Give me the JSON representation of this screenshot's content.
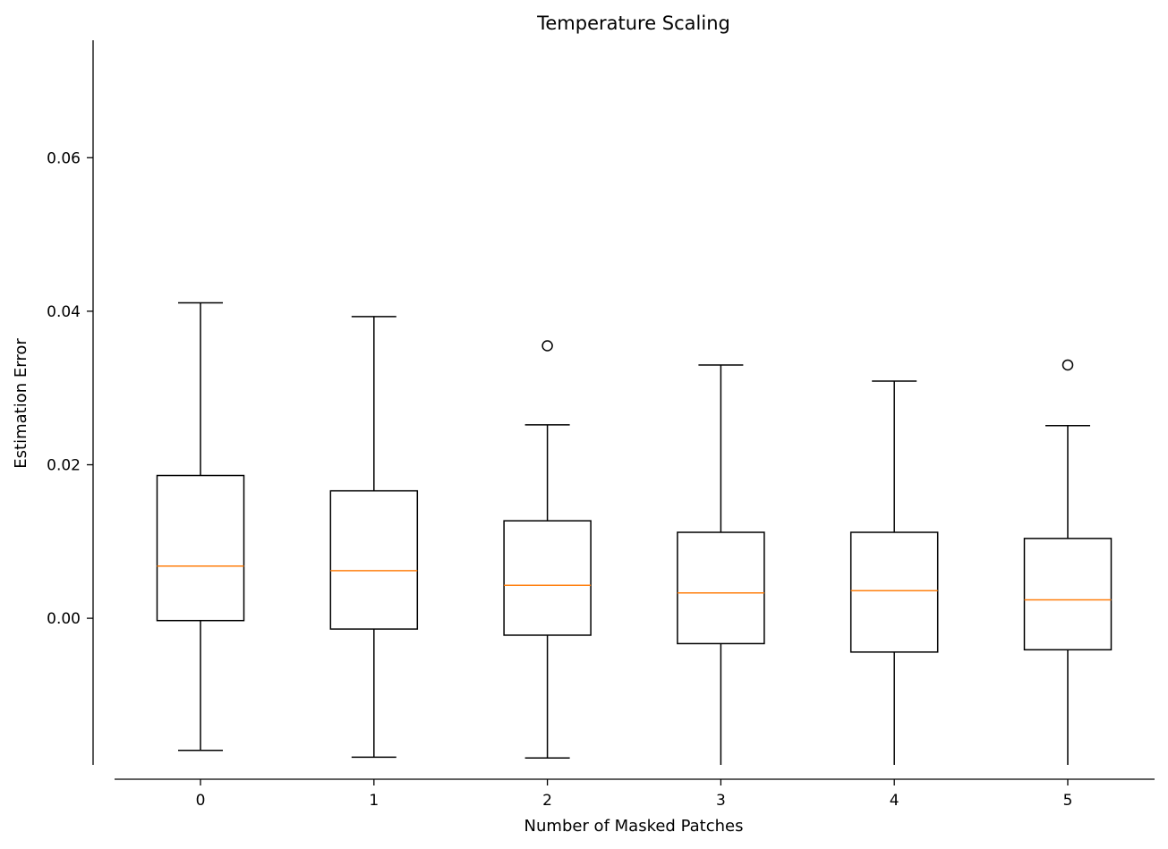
{
  "chart_data": {
    "type": "box",
    "title": "Temperature Scaling",
    "xlabel": "Number of Masked Patches",
    "ylabel": "Estimation Error",
    "categories": [
      "0",
      "1",
      "2",
      "3",
      "4",
      "5"
    ],
    "yticks": [
      "0.00",
      "0.02",
      "0.04",
      "0.06"
    ],
    "ylim": [
      -0.0191,
      0.0753
    ],
    "grid": false,
    "boxes": [
      {
        "category": "0",
        "whislo": -0.0172,
        "q1": -0.0003,
        "med": 0.0068,
        "q3": 0.0186,
        "whishi": 0.0411,
        "fliers": []
      },
      {
        "category": "1",
        "whislo": -0.0181,
        "q1": -0.0014,
        "med": 0.0062,
        "q3": 0.0166,
        "whishi": 0.0393,
        "fliers": []
      },
      {
        "category": "2",
        "whislo": -0.0182,
        "q1": -0.0022,
        "med": 0.0043,
        "q3": 0.0127,
        "whishi": 0.0252,
        "fliers": [
          0.0355
        ]
      },
      {
        "category": "3",
        "whislo": -0.0191,
        "q1": -0.0033,
        "med": 0.0033,
        "q3": 0.0112,
        "whishi": 0.033,
        "fliers": []
      },
      {
        "category": "4",
        "whislo": -0.0191,
        "q1": -0.0044,
        "med": 0.0036,
        "q3": 0.0112,
        "whishi": 0.0309,
        "fliers": []
      },
      {
        "category": "5",
        "whislo": -0.0191,
        "q1": -0.0041,
        "med": 0.0024,
        "q3": 0.0104,
        "whishi": 0.0251,
        "fliers": [
          0.033
        ]
      }
    ],
    "colors": {
      "box": "#000000",
      "median": "#ff7f0e",
      "flier": "#000000"
    }
  }
}
